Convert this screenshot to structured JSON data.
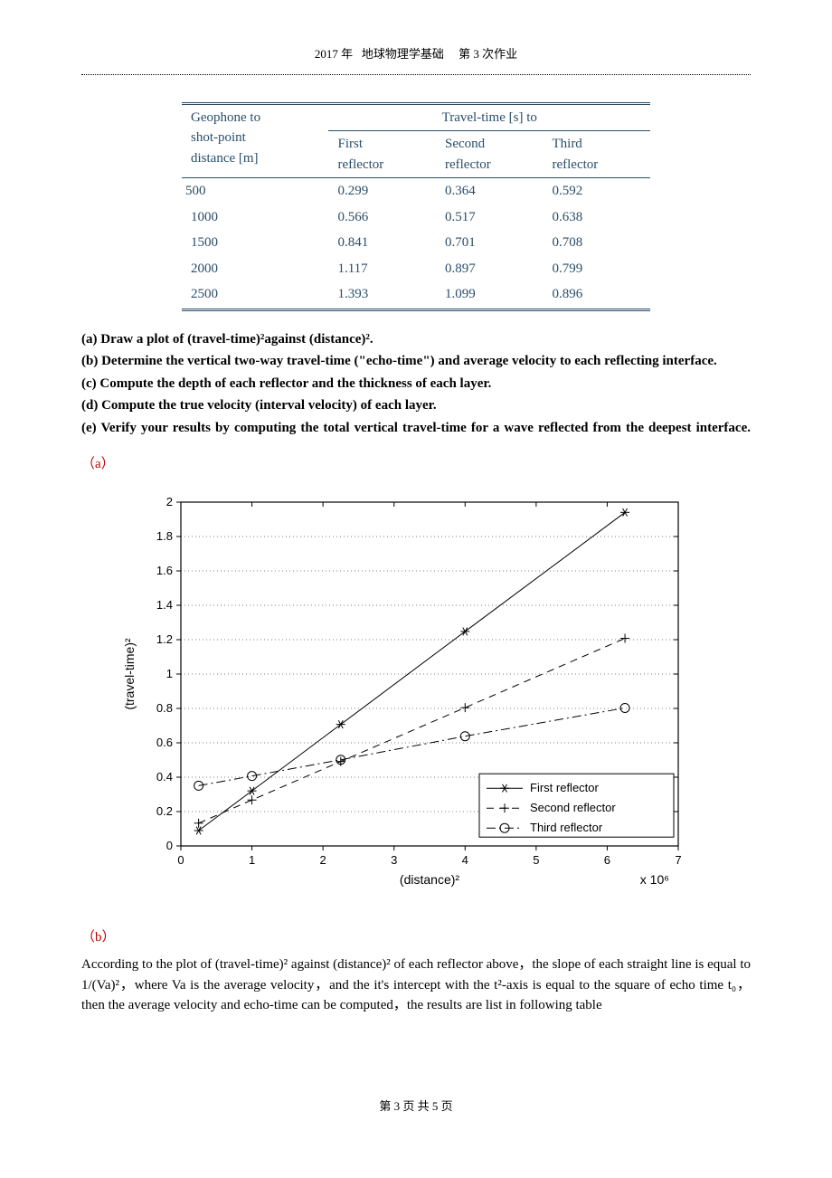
{
  "header": {
    "year": "2017 年",
    "course": "地球物理学基础",
    "assignment": "第 3 次作业"
  },
  "table": {
    "geophone_header_line1": "Geophone to",
    "geophone_header_line2": "shot-point",
    "geophone_header_line3": "distance [m]",
    "travel_time_header": "Travel-time [s] to",
    "col1_line1": "First",
    "col1_line2": "reflector",
    "col2_line1": "Second",
    "col2_line2": "reflector",
    "col3_line1": "Third",
    "col3_line2": "reflector",
    "rows": [
      {
        "dist": "500",
        "r1": "0.299",
        "r2": "0.364",
        "r3": "0.592"
      },
      {
        "dist": "1000",
        "r1": "0.566",
        "r2": "0.517",
        "r3": "0.638"
      },
      {
        "dist": "1500",
        "r1": "0.841",
        "r2": "0.701",
        "r3": "0.708"
      },
      {
        "dist": "2000",
        "r1": "1.117",
        "r2": "0.897",
        "r3": "0.799"
      },
      {
        "dist": "2500",
        "r1": "1.393",
        "r2": "1.099",
        "r3": "0.896"
      }
    ]
  },
  "questions": {
    "a": "(a) Draw a plot of (travel-time)²against (distance)².",
    "b": "(b) Determine the vertical two-way travel-time (\"echo-time\") and average velocity to each reflecting interface.",
    "c": "(c) Compute the depth of each reflector and the thickness of each layer.",
    "d": "(d) Compute the true velocity (interval velocity) of each layer.",
    "e": "(e) Verify your results by computing the total vertical travel-time for a wave reflected from the deepest interface."
  },
  "sublabel_a": "（a）",
  "sublabel_b": "（b）",
  "explanation_line1": "According to the plot of (travel-time)² against (distance)² of each reflector above，the slope of each straight line is equal to 1/(Va)²，where Va is the average velocity，and the it's intercept with the t²-axis is equal to the square of echo time t₀，then the average velocity and echo-time can be computed，the results are list in following table",
  "footer": "第 3 页 共 5 页",
  "chart": {
    "xlabel": "(distance)²",
    "ylabel": "(travel-time)²",
    "x_factor_label": "x 10⁶",
    "xlim": [
      0,
      7
    ],
    "ylim": [
      0,
      2
    ],
    "xticks": [
      0,
      1,
      2,
      3,
      4,
      5,
      6,
      7
    ],
    "yticks": [
      0,
      0.2,
      0.4,
      0.6,
      0.8,
      1,
      1.2,
      1.4,
      1.6,
      1.8,
      2
    ],
    "grid_color": "#000000",
    "background_color": "#ffffff",
    "axis_color": "#000000",
    "fontsize_ticks": 13,
    "fontsize_labels": 14,
    "legend": {
      "items": [
        "First reflector",
        "Second reflector",
        "Third reflector"
      ],
      "position": "lower-right",
      "border_color": "#000000"
    },
    "series": [
      {
        "name": "First reflector",
        "marker": "star6",
        "linestyle": "solid",
        "color": "#000000",
        "points": [
          {
            "x": 0.25,
            "y": 0.0894
          },
          {
            "x": 1.0,
            "y": 0.3204
          },
          {
            "x": 2.25,
            "y": 0.7073
          },
          {
            "x": 4.0,
            "y": 1.2477
          },
          {
            "x": 6.25,
            "y": 1.9404
          }
        ]
      },
      {
        "name": "Second reflector",
        "marker": "plus",
        "linestyle": "dashed",
        "color": "#000000",
        "points": [
          {
            "x": 0.25,
            "y": 0.1325
          },
          {
            "x": 1.0,
            "y": 0.2673
          },
          {
            "x": 2.25,
            "y": 0.4914
          },
          {
            "x": 4.0,
            "y": 0.8046
          },
          {
            "x": 6.25,
            "y": 1.2078
          }
        ]
      },
      {
        "name": "Third reflector",
        "marker": "circle",
        "linestyle": "dashdot",
        "color": "#000000",
        "points": [
          {
            "x": 0.25,
            "y": 0.3505
          },
          {
            "x": 1.0,
            "y": 0.407
          },
          {
            "x": 2.25,
            "y": 0.5013
          },
          {
            "x": 4.0,
            "y": 0.6384
          },
          {
            "x": 6.25,
            "y": 0.8028
          }
        ]
      }
    ]
  }
}
